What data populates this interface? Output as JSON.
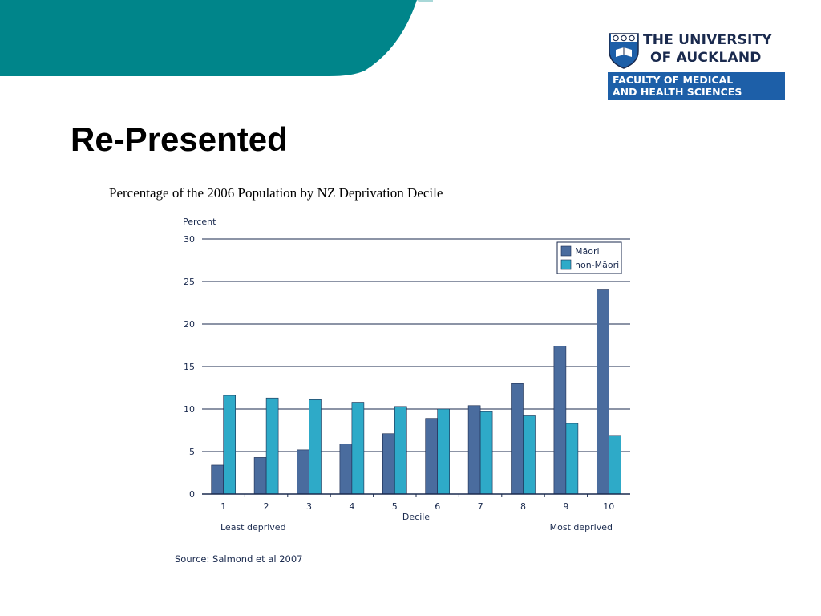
{
  "slide": {
    "title": "Re-Presented",
    "caption": "Percentage of the 2006 Population by NZ Deprivation Decile",
    "accent_color": "#00858a"
  },
  "logo": {
    "line1": "THE UNIVERSITY",
    "line2": "OF AUCKLAND",
    "faculty_line1": "FACULTY OF MEDICAL",
    "faculty_line2": "AND HEALTH SCIENCES",
    "box_color": "#1d5fa8"
  },
  "chart_data": {
    "type": "bar",
    "ylabel": "Percent",
    "xlabel": "Decile",
    "ylim": [
      0,
      30
    ],
    "yticks": [
      0,
      5,
      10,
      15,
      20,
      25,
      30
    ],
    "grid": true,
    "legend_position": "top-right",
    "categories": [
      "1",
      "2",
      "3",
      "4",
      "5",
      "6",
      "7",
      "8",
      "9",
      "10"
    ],
    "series": [
      {
        "name": "Māori",
        "color": "#4a6c9e",
        "values": [
          3.4,
          4.3,
          5.2,
          5.9,
          7.1,
          8.9,
          10.4,
          13.0,
          17.4,
          24.1
        ]
      },
      {
        "name": "non-Māori",
        "color": "#2eaac8",
        "values": [
          11.6,
          11.3,
          11.1,
          10.8,
          10.3,
          10.0,
          9.7,
          9.2,
          8.3,
          6.9
        ]
      }
    ],
    "annotations": {
      "left": "Least deprived",
      "right": "Most deprived",
      "source": "Source: Salmond et al 2007"
    }
  }
}
